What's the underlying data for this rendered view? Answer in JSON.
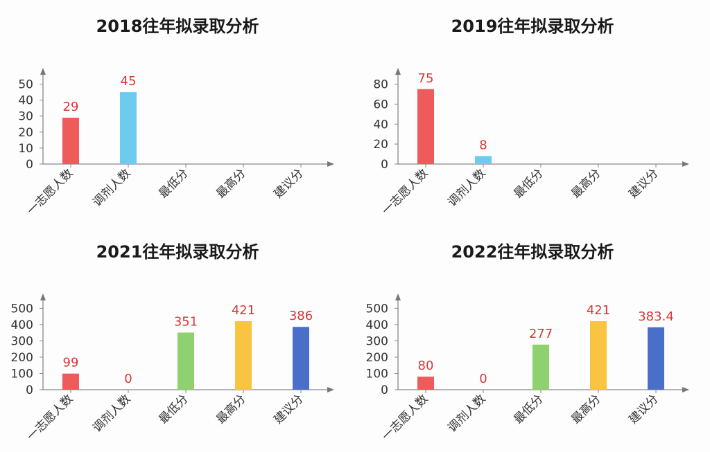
{
  "chart_data": [
    {
      "type": "bar",
      "title": "2018往年拟录取分析",
      "categories": [
        "一志愿人数",
        "调剂人数",
        "最低分",
        "最高分",
        "建议分"
      ],
      "values": [
        29,
        45,
        null,
        null,
        null
      ],
      "value_labels": [
        "29",
        "45",
        "",
        "",
        ""
      ],
      "colors": [
        "#ef5b5b",
        "#6ccbef",
        "#8fd16e",
        "#f9c441",
        "#4a6fcb"
      ],
      "yticks": [
        0,
        10,
        20,
        30,
        40,
        50
      ],
      "ylim": [
        0,
        55
      ],
      "grid": false
    },
    {
      "type": "bar",
      "title": "2019往年拟录取分析",
      "categories": [
        "一志愿人数",
        "调剂人数",
        "最低分",
        "最高分",
        "建议分"
      ],
      "values": [
        75,
        8,
        null,
        null,
        null
      ],
      "value_labels": [
        "75",
        "8",
        "",
        "",
        ""
      ],
      "colors": [
        "#ef5b5b",
        "#6ccbef",
        "#8fd16e",
        "#f9c441",
        "#4a6fcb"
      ],
      "yticks": [
        0,
        20,
        40,
        60,
        80
      ],
      "ylim": [
        0,
        88
      ],
      "grid": false
    },
    {
      "type": "bar",
      "title": "2021往年拟录取分析",
      "categories": [
        "一志愿人数",
        "调剂人数",
        "最低分",
        "最高分",
        "建议分"
      ],
      "values": [
        99,
        0,
        351,
        421,
        386
      ],
      "value_labels": [
        "99",
        "0",
        "351",
        "421",
        "386"
      ],
      "colors": [
        "#ef5b5b",
        "#6ccbef",
        "#8fd16e",
        "#f9c441",
        "#4a6fcb"
      ],
      "yticks": [
        0,
        100,
        200,
        300,
        400,
        500
      ],
      "ylim": [
        0,
        540
      ],
      "grid": false
    },
    {
      "type": "bar",
      "title": "2022往年拟录取分析",
      "categories": [
        "一志愿人数",
        "调剂人数",
        "最低分",
        "最高分",
        "建议分"
      ],
      "values": [
        80,
        0,
        277,
        421,
        383.4
      ],
      "value_labels": [
        "80",
        "0",
        "277",
        "421",
        "383.4"
      ],
      "colors": [
        "#ef5b5b",
        "#6ccbef",
        "#8fd16e",
        "#f9c441",
        "#4a6fcb"
      ],
      "yticks": [
        0,
        100,
        200,
        300,
        400,
        500
      ],
      "ylim": [
        0,
        540
      ],
      "grid": false
    }
  ]
}
